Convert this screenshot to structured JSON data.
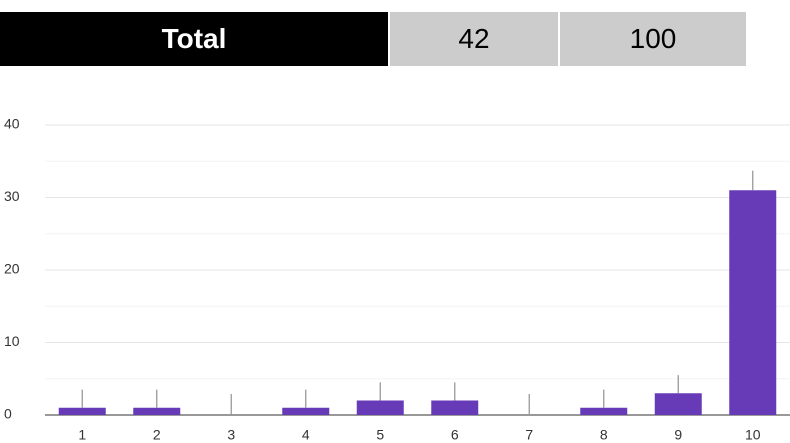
{
  "table": {
    "rows": [
      [
        "Total",
        "42",
        "100"
      ]
    ]
  },
  "chart_data": {
    "type": "bar",
    "categories": [
      "1",
      "2",
      "3",
      "4",
      "5",
      "6",
      "7",
      "8",
      "9",
      "10"
    ],
    "values": [
      1,
      1,
      0,
      1,
      2,
      2,
      0,
      1,
      3,
      31
    ],
    "errors": [
      2.5,
      2.5,
      2.9,
      2.5,
      2.5,
      2.5,
      2.9,
      2.5,
      2.5,
      2.7
    ],
    "color": "#673ab7",
    "ylim": [
      0,
      40
    ],
    "yticks": [
      0,
      10,
      20,
      30,
      40
    ],
    "minor_yticks": [
      5,
      15,
      25,
      35
    ],
    "grid": true
  }
}
